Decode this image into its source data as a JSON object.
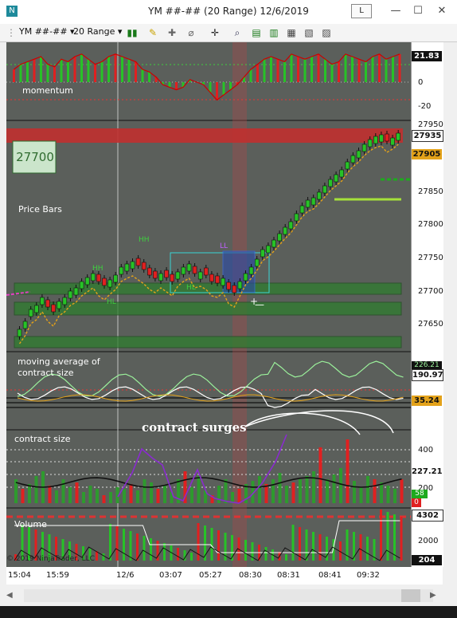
{
  "window": {
    "title": "YM ##-## (20 Range)  12/6/2019",
    "l_button": "L",
    "minimize": "—",
    "maximize": "☐",
    "close": "✕"
  },
  "toolbar": {
    "instrument": "YM ##-##",
    "interval": "20 Range"
  },
  "panes": {
    "momentum": {
      "label": "momentum",
      "ticks": [
        "0",
        "-20"
      ],
      "badge": "21.83"
    },
    "price": {
      "label": "Price Bars",
      "ticks": [
        "27950",
        "27850",
        "27800",
        "27750",
        "27700",
        "27650"
      ],
      "badge_last": "27935",
      "badge_ma": "27905",
      "box_price": "27700",
      "annotations": [
        "HH",
        "HH",
        "HL",
        "HL",
        "LL"
      ]
    },
    "ma_contract": {
      "label": "moving average of\ncontract size",
      "badge_top": "226.21",
      "badge_white": "190.97",
      "badge_orange": "35.24"
    },
    "contract": {
      "label": "contract size",
      "annotation": "contract surges",
      "ticks": [
        "400",
        "200"
      ],
      "badge_main": "227.21",
      "badge_green": "58",
      "badge_red": "0"
    },
    "volume": {
      "label": "Volume",
      "ticks": [
        "2000"
      ],
      "badge_top": "4302",
      "badge_bottom": "204"
    }
  },
  "copyright": "© 2019 NinjaTrader, LLC",
  "xaxis": [
    "15:04",
    "15:59",
    "12/6",
    "03:07",
    "05:27",
    "08:30",
    "08:31",
    "08:41",
    "09:32"
  ],
  "colors": {
    "up": "#27c227",
    "down": "#e02020",
    "ma": "#e3a21a",
    "zone": "#2e7d2e",
    "resistance": "#c0302f"
  }
}
